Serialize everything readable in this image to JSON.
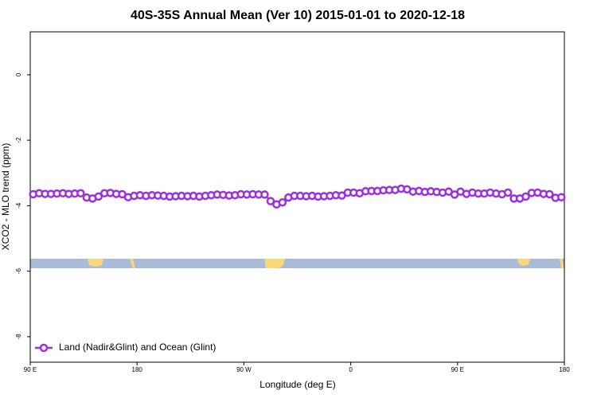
{
  "chart_data": {
    "type": "line",
    "title": "40S-35S Annual Mean (Ver 10)   2015-01-01 to 2020-12-18",
    "x_label": "Longitude (deg E)",
    "y_label": "XCO2 - MLO trend (ppm)",
    "xlim": [
      90,
      540
    ],
    "xticks": [
      {
        "value": 90,
        "label": "90 E"
      },
      180,
      {
        "value": 270,
        "label": "90 W"
      },
      {
        "value": 360,
        "label": "0"
      },
      {
        "value": 450,
        "label": "90 E"
      },
      {
        "value": 540,
        "label": "180"
      }
    ],
    "ylim": [
      -8.78,
      1.31
    ],
    "yticks": [
      0,
      -2,
      -4,
      -6,
      -8
    ],
    "legend": "bottom-left",
    "x": [
      92.5,
      97.5,
      102.5,
      107.5,
      112.5,
      117.5,
      122.5,
      127.5,
      132.5,
      137.5,
      142.5,
      147.5,
      152.5,
      157.5,
      162.5,
      167.5,
      172.5,
      177.5,
      182.5,
      187.5,
      192.5,
      197.5,
      202.5,
      207.5,
      212.5,
      217.5,
      222.5,
      227.5,
      232.5,
      237.5,
      242.5,
      247.5,
      252.5,
      257.5,
      262.5,
      267.5,
      272.5,
      277.5,
      282.5,
      287.5,
      292.5,
      297.5,
      302.5,
      307.5,
      312.5,
      317.5,
      322.5,
      327.5,
      332.5,
      337.5,
      342.5,
      347.5,
      352.5,
      357.5,
      362.5,
      367.5,
      372.5,
      377.5,
      382.5,
      387.5,
      392.5,
      397.5,
      402.5,
      407.5,
      412.5,
      417.5,
      422.5,
      427.5,
      432.5,
      437.5,
      442.5,
      447.5,
      452.5,
      457.5,
      462.5,
      467.5,
      472.5,
      477.5,
      482.5,
      487.5,
      492.5,
      497.5,
      502.5,
      507.5,
      512.5,
      517.5,
      522.5,
      527.5,
      532.5,
      537.5
    ],
    "series": [
      {
        "name": "Land (Nadir&Glint) and Ocean (Glint)",
        "color": "#9b30e0",
        "values": [
          -3.65,
          -3.62,
          -3.64,
          -3.64,
          -3.63,
          -3.62,
          -3.64,
          -3.63,
          -3.62,
          -3.75,
          -3.78,
          -3.72,
          -3.62,
          -3.61,
          -3.64,
          -3.65,
          -3.74,
          -3.7,
          -3.68,
          -3.7,
          -3.68,
          -3.69,
          -3.7,
          -3.72,
          -3.71,
          -3.7,
          -3.71,
          -3.7,
          -3.72,
          -3.7,
          -3.68,
          -3.66,
          -3.67,
          -3.69,
          -3.68,
          -3.65,
          -3.66,
          -3.65,
          -3.66,
          -3.66,
          -3.86,
          -3.96,
          -3.9,
          -3.75,
          -3.7,
          -3.7,
          -3.71,
          -3.7,
          -3.72,
          -3.71,
          -3.7,
          -3.68,
          -3.69,
          -3.6,
          -3.6,
          -3.62,
          -3.56,
          -3.55,
          -3.55,
          -3.53,
          -3.52,
          -3.52,
          -3.48,
          -3.5,
          -3.57,
          -3.55,
          -3.58,
          -3.56,
          -3.58,
          -3.6,
          -3.57,
          -3.66,
          -3.57,
          -3.64,
          -3.6,
          -3.63,
          -3.63,
          -3.6,
          -3.63,
          -3.65,
          -3.6,
          -3.78,
          -3.78,
          -3.72,
          -3.61,
          -3.6,
          -3.64,
          -3.65,
          -3.76,
          -3.74
        ]
      }
    ]
  }
}
